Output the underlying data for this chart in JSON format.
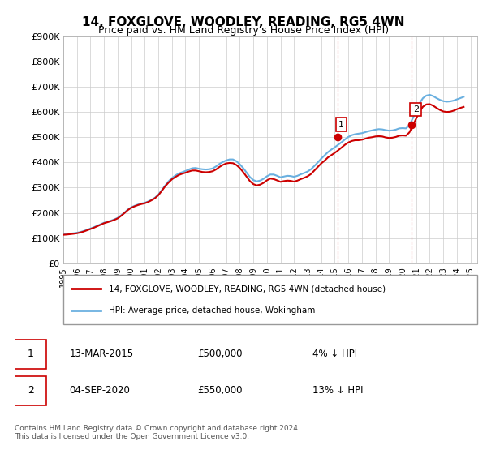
{
  "title": "14, FOXGLOVE, WOODLEY, READING, RG5 4WN",
  "subtitle": "Price paid vs. HM Land Registry's House Price Index (HPI)",
  "ylabel_ticks": [
    "£0",
    "£100K",
    "£200K",
    "£300K",
    "£400K",
    "£500K",
    "£600K",
    "£700K",
    "£800K",
    "£900K"
  ],
  "ylim": [
    0,
    900000
  ],
  "xlim_start": 1995.0,
  "xlim_end": 2025.5,
  "hpi_color": "#6ab0e0",
  "price_color": "#cc0000",
  "background_color": "#ffffff",
  "grid_color": "#cccccc",
  "transaction1_x": 2015.19,
  "transaction1_y": 500000,
  "transaction2_x": 2020.67,
  "transaction2_y": 550000,
  "legend1": "14, FOXGLOVE, WOODLEY, READING, RG5 4WN (detached house)",
  "legend2": "HPI: Average price, detached house, Wokingham",
  "ann1_label": "1",
  "ann1_date": "13-MAR-2015",
  "ann1_price": "£500,000",
  "ann1_pct": "4% ↓ HPI",
  "ann2_label": "2",
  "ann2_date": "04-SEP-2020",
  "ann2_price": "£550,000",
  "ann2_pct": "13% ↓ HPI",
  "footer": "Contains HM Land Registry data © Crown copyright and database right 2024.\nThis data is licensed under the Open Government Licence v3.0.",
  "hpi_data_x": [
    1995.0,
    1995.25,
    1995.5,
    1995.75,
    1996.0,
    1996.25,
    1996.5,
    1996.75,
    1997.0,
    1997.25,
    1997.5,
    1997.75,
    1998.0,
    1998.25,
    1998.5,
    1998.75,
    1999.0,
    1999.25,
    1999.5,
    1999.75,
    2000.0,
    2000.25,
    2000.5,
    2000.75,
    2001.0,
    2001.25,
    2001.5,
    2001.75,
    2002.0,
    2002.25,
    2002.5,
    2002.75,
    2003.0,
    2003.25,
    2003.5,
    2003.75,
    2004.0,
    2004.25,
    2004.5,
    2004.75,
    2005.0,
    2005.25,
    2005.5,
    2005.75,
    2006.0,
    2006.25,
    2006.5,
    2006.75,
    2007.0,
    2007.25,
    2007.5,
    2007.75,
    2008.0,
    2008.25,
    2008.5,
    2008.75,
    2009.0,
    2009.25,
    2009.5,
    2009.75,
    2010.0,
    2010.25,
    2010.5,
    2010.75,
    2011.0,
    2011.25,
    2011.5,
    2011.75,
    2012.0,
    2012.25,
    2012.5,
    2012.75,
    2013.0,
    2013.25,
    2013.5,
    2013.75,
    2014.0,
    2014.25,
    2014.5,
    2014.75,
    2015.0,
    2015.25,
    2015.5,
    2015.75,
    2016.0,
    2016.25,
    2016.5,
    2016.75,
    2017.0,
    2017.25,
    2017.5,
    2017.75,
    2018.0,
    2018.25,
    2018.5,
    2018.75,
    2019.0,
    2019.25,
    2019.5,
    2019.75,
    2020.0,
    2020.25,
    2020.5,
    2020.75,
    2021.0,
    2021.25,
    2021.5,
    2021.75,
    2022.0,
    2022.25,
    2022.5,
    2022.75,
    2023.0,
    2023.25,
    2023.5,
    2023.75,
    2024.0,
    2024.25,
    2024.5
  ],
  "hpi_data_y": [
    115000,
    116000,
    117500,
    119000,
    121000,
    124000,
    128000,
    133000,
    138000,
    143000,
    149000,
    155000,
    161000,
    165000,
    169000,
    174000,
    180000,
    190000,
    201000,
    213000,
    222000,
    228000,
    233000,
    237000,
    240000,
    245000,
    252000,
    260000,
    272000,
    290000,
    308000,
    325000,
    338000,
    348000,
    356000,
    361000,
    366000,
    372000,
    377000,
    378000,
    375000,
    373000,
    372000,
    373000,
    376000,
    384000,
    394000,
    402000,
    408000,
    412000,
    412000,
    405000,
    393000,
    378000,
    360000,
    342000,
    330000,
    325000,
    328000,
    335000,
    345000,
    352000,
    352000,
    347000,
    341000,
    344000,
    347000,
    346000,
    343000,
    347000,
    353000,
    358000,
    364000,
    373000,
    386000,
    400000,
    415000,
    428000,
    441000,
    451000,
    460000,
    470000,
    480000,
    491000,
    501000,
    508000,
    512000,
    514000,
    516000,
    520000,
    524000,
    527000,
    530000,
    532000,
    531000,
    528000,
    526000,
    527000,
    530000,
    535000,
    536000,
    535000,
    548000,
    575000,
    605000,
    635000,
    655000,
    665000,
    668000,
    663000,
    655000,
    648000,
    643000,
    641000,
    642000,
    645000,
    650000,
    655000,
    660000
  ],
  "price_data_x": [
    1995.0,
    1995.25,
    1995.5,
    1995.75,
    1996.0,
    1996.25,
    1996.5,
    1996.75,
    1997.0,
    1997.25,
    1997.5,
    1997.75,
    1998.0,
    1998.25,
    1998.5,
    1998.75,
    1999.0,
    1999.25,
    1999.5,
    1999.75,
    2000.0,
    2000.25,
    2000.5,
    2000.75,
    2001.0,
    2001.25,
    2001.5,
    2001.75,
    2002.0,
    2002.25,
    2002.5,
    2002.75,
    2003.0,
    2003.25,
    2003.5,
    2003.75,
    2004.0,
    2004.25,
    2004.5,
    2004.75,
    2005.0,
    2005.25,
    2005.5,
    2005.75,
    2006.0,
    2006.25,
    2006.5,
    2006.75,
    2007.0,
    2007.25,
    2007.5,
    2007.75,
    2008.0,
    2008.25,
    2008.5,
    2008.75,
    2009.0,
    2009.25,
    2009.5,
    2009.75,
    2010.0,
    2010.25,
    2010.5,
    2010.75,
    2011.0,
    2011.25,
    2011.5,
    2011.75,
    2012.0,
    2012.25,
    2012.5,
    2012.75,
    2013.0,
    2013.25,
    2013.5,
    2013.75,
    2014.0,
    2014.25,
    2014.5,
    2014.75,
    2015.0,
    2015.25,
    2015.5,
    2015.75,
    2016.0,
    2016.25,
    2016.5,
    2016.75,
    2017.0,
    2017.25,
    2017.5,
    2017.75,
    2018.0,
    2018.25,
    2018.5,
    2018.75,
    2019.0,
    2019.25,
    2019.5,
    2019.75,
    2020.0,
    2020.25,
    2020.5,
    2020.75,
    2021.0,
    2021.25,
    2021.5,
    2021.75,
    2022.0,
    2022.25,
    2022.5,
    2022.75,
    2023.0,
    2023.25,
    2023.5,
    2023.75,
    2024.0,
    2024.25,
    2024.5
  ],
  "price_data_y": [
    113000,
    114000,
    115500,
    117000,
    119000,
    122000,
    126000,
    131000,
    136000,
    141000,
    147000,
    153000,
    159000,
    163000,
    167000,
    172000,
    178000,
    188000,
    199000,
    211000,
    220000,
    226000,
    231000,
    235000,
    238000,
    243000,
    250000,
    258000,
    270000,
    287000,
    305000,
    320000,
    333000,
    342000,
    350000,
    355000,
    359000,
    364000,
    368000,
    368000,
    365000,
    362000,
    361000,
    362000,
    365000,
    372000,
    382000,
    390000,
    396000,
    398000,
    397000,
    390000,
    378000,
    362000,
    344000,
    326000,
    314000,
    309000,
    312000,
    319000,
    329000,
    336000,
    334000,
    329000,
    323000,
    326000,
    328000,
    327000,
    324000,
    328000,
    334000,
    339000,
    345000,
    354000,
    368000,
    382000,
    396000,
    407000,
    420000,
    429000,
    438000,
    448000,
    459000,
    470000,
    479000,
    485000,
    488000,
    488000,
    490000,
    494000,
    498000,
    500000,
    503000,
    504000,
    503000,
    499000,
    497000,
    498000,
    501000,
    506000,
    507000,
    506000,
    519000,
    546000,
    574000,
    602000,
    621000,
    630000,
    631000,
    625000,
    616000,
    608000,
    602000,
    600000,
    601000,
    605000,
    611000,
    616000,
    620000
  ]
}
